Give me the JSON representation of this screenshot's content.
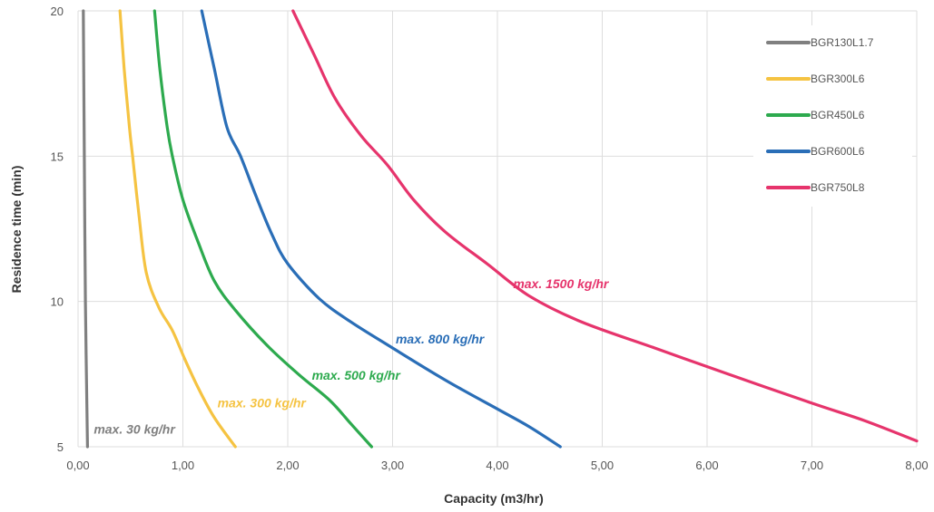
{
  "chart_data": {
    "type": "line",
    "title": "",
    "xlabel": "Capacity (m3/hr)",
    "ylabel": "Residence time (min)",
    "xlim": [
      0,
      8
    ],
    "ylim": [
      5,
      20
    ],
    "x_ticks": [
      0,
      1,
      2,
      3,
      4,
      5,
      6,
      7,
      8
    ],
    "x_tick_labels": [
      "0,00",
      "1,00",
      "2,00",
      "3,00",
      "4,00",
      "5,00",
      "6,00",
      "7,00",
      "8,00"
    ],
    "y_ticks": [
      5,
      10,
      15,
      20
    ],
    "y_tick_labels": [
      "5",
      "10",
      "15",
      "20"
    ],
    "grid": true,
    "legend_position": "top-right",
    "series": [
      {
        "name": "BGR130L1.7",
        "color": "#808080",
        "points": [
          [
            0.05,
            20
          ],
          [
            0.06,
            15
          ],
          [
            0.07,
            10
          ],
          [
            0.09,
            5
          ]
        ]
      },
      {
        "name": "BGR300L6",
        "color": "#F5C342",
        "points": [
          [
            0.4,
            20
          ],
          [
            0.44,
            18
          ],
          [
            0.49,
            16
          ],
          [
            0.52,
            15
          ],
          [
            0.58,
            13
          ],
          [
            0.65,
            11
          ],
          [
            0.77,
            9.8
          ],
          [
            0.9,
            9
          ],
          [
            1.02,
            8
          ],
          [
            1.15,
            7
          ],
          [
            1.3,
            6
          ],
          [
            1.5,
            5
          ]
        ]
      },
      {
        "name": "BGR450L6",
        "color": "#2DAA4E",
        "points": [
          [
            0.73,
            20
          ],
          [
            0.78,
            18
          ],
          [
            0.85,
            16
          ],
          [
            0.9,
            15
          ],
          [
            1.0,
            13.5
          ],
          [
            1.15,
            12
          ],
          [
            1.3,
            10.7
          ],
          [
            1.5,
            9.7
          ],
          [
            1.8,
            8.5
          ],
          [
            2.1,
            7.5
          ],
          [
            2.4,
            6.6
          ],
          [
            2.6,
            5.8
          ],
          [
            2.8,
            5
          ]
        ]
      },
      {
        "name": "BGR600L6",
        "color": "#2A6EB7",
        "points": [
          [
            1.18,
            20
          ],
          [
            1.3,
            18
          ],
          [
            1.42,
            16
          ],
          [
            1.55,
            15
          ],
          [
            1.7,
            13.6
          ],
          [
            1.85,
            12.3
          ],
          [
            2.0,
            11.3
          ],
          [
            2.3,
            10.1
          ],
          [
            2.6,
            9.3
          ],
          [
            3.0,
            8.4
          ],
          [
            3.5,
            7.3
          ],
          [
            4.0,
            6.3
          ],
          [
            4.3,
            5.7
          ],
          [
            4.6,
            5
          ]
        ]
      },
      {
        "name": "BGR750L8",
        "color": "#E6346C",
        "points": [
          [
            2.05,
            20
          ],
          [
            2.25,
            18.5
          ],
          [
            2.45,
            17
          ],
          [
            2.7,
            15.7
          ],
          [
            2.95,
            14.7
          ],
          [
            3.2,
            13.5
          ],
          [
            3.5,
            12.4
          ],
          [
            3.9,
            11.3
          ],
          [
            4.3,
            10.2
          ],
          [
            4.8,
            9.3
          ],
          [
            5.5,
            8.4
          ],
          [
            6.2,
            7.5
          ],
          [
            7.0,
            6.5
          ],
          [
            7.5,
            5.9
          ],
          [
            8.0,
            5.2
          ]
        ]
      }
    ],
    "annotations": [
      {
        "text": "max. 30 kg/hr",
        "x": 0.15,
        "y": 5.45,
        "color": "#808080"
      },
      {
        "text": "max. 300 kg/hr",
        "x": 1.33,
        "y": 6.35,
        "color": "#F5C342"
      },
      {
        "text": "max. 500 kg/hr",
        "x": 2.23,
        "y": 7.3,
        "color": "#2DAA4E"
      },
      {
        "text": "max. 800 kg/hr",
        "x": 3.03,
        "y": 8.55,
        "color": "#2A6EB7"
      },
      {
        "text": "max. 1500 kg/hr",
        "x": 4.15,
        "y": 10.45,
        "color": "#E6346C"
      }
    ]
  }
}
